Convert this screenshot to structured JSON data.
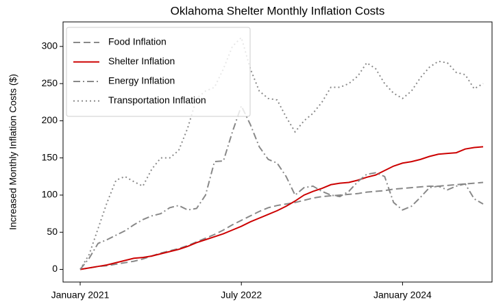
{
  "chart_data": {
    "type": "line",
    "title": "Oklahoma Shelter Monthly Inflation Costs",
    "y_label": "Increased Monthly Inflation Costs ($)",
    "categories": [
      "January 2021",
      null,
      null,
      null,
      null,
      null,
      null,
      null,
      null,
      null,
      null,
      null,
      null,
      null,
      null,
      null,
      null,
      null,
      "July 2022",
      null,
      null,
      null,
      null,
      null,
      null,
      null,
      null,
      null,
      null,
      null,
      null,
      null,
      null,
      null,
      null,
      null,
      "January 2024",
      null,
      null,
      null,
      null,
      null,
      null,
      null,
      null,
      null
    ],
    "series": [
      {
        "name": "Food Inflation",
        "color": "#888888",
        "style": "dashed",
        "values": [
          0,
          2,
          4,
          5,
          7,
          9,
          11,
          14,
          18,
          22,
          25,
          28,
          32,
          37,
          42,
          47,
          53,
          60,
          66,
          72,
          78,
          83,
          86,
          88,
          90,
          93,
          96,
          98,
          99,
          100,
          101,
          102,
          104,
          105,
          106,
          108,
          109,
          110,
          111,
          112,
          112,
          113,
          114,
          115,
          116,
          117
        ]
      },
      {
        "name": "Shelter Inflation",
        "color": "#cc0000",
        "style": "solid",
        "values": [
          0,
          2,
          4,
          6,
          9,
          12,
          15,
          16,
          18,
          21,
          24,
          27,
          31,
          36,
          40,
          44,
          48,
          53,
          58,
          64,
          69,
          74,
          79,
          85,
          92,
          100,
          105,
          109,
          114,
          116,
          117,
          120,
          124,
          127,
          133,
          139,
          143,
          145,
          148,
          152,
          155,
          156,
          157,
          162,
          164,
          165
        ]
      },
      {
        "name": "Energy Inflation",
        "color": "#888888",
        "style": "dashdot",
        "values": [
          0,
          15,
          35,
          40,
          46,
          52,
          60,
          67,
          72,
          75,
          83,
          86,
          80,
          82,
          100,
          145,
          146,
          185,
          220,
          195,
          165,
          148,
          143,
          125,
          100,
          110,
          112,
          105,
          100,
          98,
          105,
          118,
          128,
          130,
          125,
          90,
          80,
          85,
          97,
          110,
          112,
          107,
          112,
          115,
          95,
          88
        ]
      },
      {
        "name": "Transportation Inflation",
        "color": "#888888",
        "style": "dotted",
        "values": [
          0,
          20,
          55,
          90,
          120,
          125,
          118,
          112,
          135,
          150,
          150,
          160,
          190,
          230,
          240,
          245,
          270,
          300,
          312,
          270,
          240,
          230,
          228,
          205,
          185,
          200,
          210,
          225,
          245,
          245,
          250,
          260,
          278,
          270,
          250,
          237,
          230,
          240,
          258,
          272,
          280,
          278,
          265,
          262,
          243,
          250
        ]
      }
    ],
    "ylim": [
      -17,
      333
    ],
    "yticks": [
      0,
      50,
      100,
      150,
      200,
      250,
      300
    ],
    "grid": false,
    "legend": "upper left"
  }
}
